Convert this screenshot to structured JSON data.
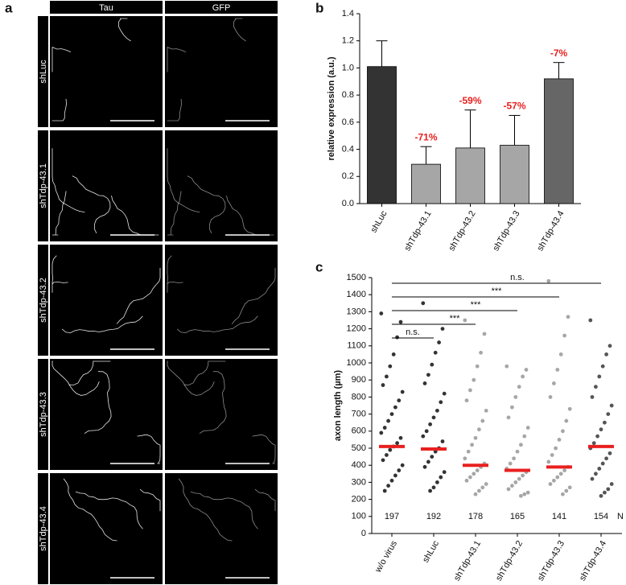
{
  "panel_labels": [
    "a",
    "b",
    "c"
  ],
  "image_grid": {
    "columns": [
      "Tau",
      "GFP"
    ],
    "rows": [
      "shLuc",
      "shTdp-43.1",
      "shTdp-43.2",
      "shTdp-43.3",
      "shTdp-43.4"
    ]
  },
  "chart_data": [
    {
      "type": "bar",
      "y_label": "relative expression (a.u.)",
      "categories": [
        "shLuc",
        "shTdp-43.1",
        "shTdp-43.2",
        "shTdp-43.3",
        "shTdp-43.4"
      ],
      "values": [
        1.01,
        0.29,
        0.41,
        0.43,
        0.92
      ],
      "errors": [
        0.19,
        0.13,
        0.28,
        0.22,
        0.12
      ],
      "annotations": [
        null,
        "-71%",
        "-59%",
        "-57%",
        "-7%"
      ],
      "annotation_color": "#e8201f",
      "colors": [
        "#333333",
        "#a6a6a6",
        "#a6a6a6",
        "#a6a6a6",
        "#666666"
      ],
      "ylim": [
        0,
        1.4
      ],
      "yticks": [
        {
          "value": 0,
          "label": "0.0"
        },
        0.2,
        0.4,
        0.6,
        0.8,
        {
          "value": 1,
          "label": "1.0"
        },
        1.2,
        1.4
      ]
    },
    {
      "type": "dotplot",
      "y_label": "axon length (µm)",
      "n_label": "N",
      "median_color": "#e8201f",
      "groups": [
        {
          "category": "w/o virus",
          "color": "#333333",
          "n": 197,
          "median": 510,
          "values": [
            1290,
            1240,
            1150,
            1050,
            980,
            920,
            870,
            830,
            780,
            740,
            700,
            660,
            620,
            590,
            560,
            530,
            510,
            490,
            460,
            430,
            400,
            370,
            340,
            310,
            280,
            250
          ]
        },
        {
          "category": "shLuc",
          "color": "#333333",
          "n": 192,
          "median": 495,
          "values": [
            1350,
            1200,
            1120,
            1060,
            990,
            930,
            880,
            820,
            770,
            720,
            680,
            640,
            600,
            570,
            540,
            500,
            480,
            450,
            420,
            390,
            360,
            330,
            300,
            270,
            250
          ]
        },
        {
          "category": "shTdp-43.1",
          "color": "#a6a6a6",
          "n": 178,
          "median": 400,
          "values": [
            1250,
            1170,
            1060,
            980,
            900,
            840,
            780,
            720,
            660,
            610,
            560,
            520,
            480,
            440,
            410,
            390,
            370,
            350,
            330,
            310,
            290,
            270,
            250,
            230
          ]
        },
        {
          "category": "shTdp-43.2",
          "color": "#a6a6a6",
          "n": 165,
          "median": 370,
          "values": [
            980,
            960,
            920,
            860,
            800,
            740,
            680,
            620,
            570,
            520,
            480,
            440,
            410,
            380,
            360,
            340,
            320,
            300,
            280,
            260,
            240,
            230,
            220
          ]
        },
        {
          "category": "shTdp-43.3",
          "color": "#a6a6a6",
          "n": 141,
          "median": 390,
          "values": [
            1480,
            1270,
            1160,
            1050,
            960,
            880,
            800,
            730,
            660,
            600,
            550,
            500,
            460,
            420,
            390,
            370,
            350,
            330,
            310,
            290,
            270,
            250,
            230
          ]
        },
        {
          "category": "shTdp-43.4",
          "color": "#555555",
          "n": 154,
          "median": 510,
          "values": [
            1250,
            1100,
            1050,
            980,
            920,
            860,
            800,
            750,
            700,
            650,
            610,
            570,
            530,
            500,
            470,
            440,
            410,
            380,
            350,
            320,
            290,
            260,
            240,
            220
          ]
        }
      ],
      "comparisons": [
        "n.s.",
        "***",
        "***",
        "***",
        "n.s."
      ],
      "ylim": [
        0,
        1500
      ],
      "yticks": [
        0,
        100,
        200,
        300,
        400,
        500,
        600,
        700,
        800,
        900,
        1000,
        1100,
        1200,
        1300,
        1400,
        1500
      ]
    }
  ]
}
